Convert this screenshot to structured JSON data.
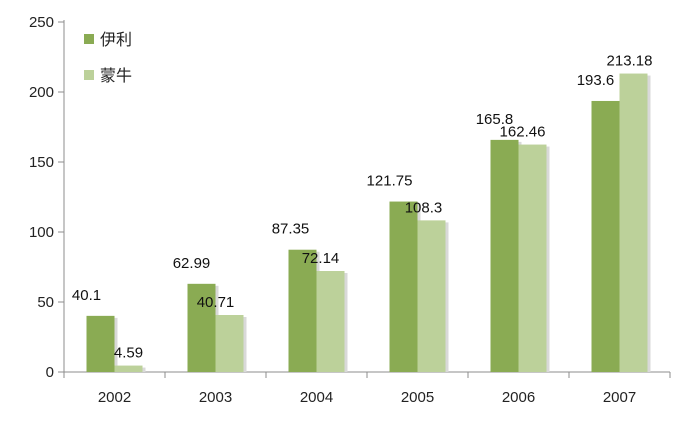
{
  "chart_data": {
    "type": "bar",
    "categories": [
      "2002",
      "2003",
      "2004",
      "2005",
      "2006",
      "2007"
    ],
    "series": [
      {
        "name": "伊利",
        "color": "#8aab53",
        "values": [
          40.1,
          62.99,
          87.35,
          121.75,
          165.8,
          193.6
        ]
      },
      {
        "name": "蒙牛",
        "color": "#bcd19a",
        "values": [
          4.59,
          40.71,
          72.14,
          108.3,
          162.46,
          213.18
        ]
      }
    ],
    "data_labels": [
      [
        "40.1",
        "62.99",
        "87.35",
        "121.75",
        "165.8",
        "193.6"
      ],
      [
        "4.59",
        "40.71",
        "72.14",
        "108.3",
        "162.46",
        "213.18"
      ]
    ],
    "y_ticks": [
      0,
      50,
      100,
      150,
      200,
      250
    ],
    "ylim": [
      0,
      250
    ],
    "title": "",
    "xlabel": "",
    "ylabel": "",
    "grid": false,
    "legend_position": "top-left"
  }
}
